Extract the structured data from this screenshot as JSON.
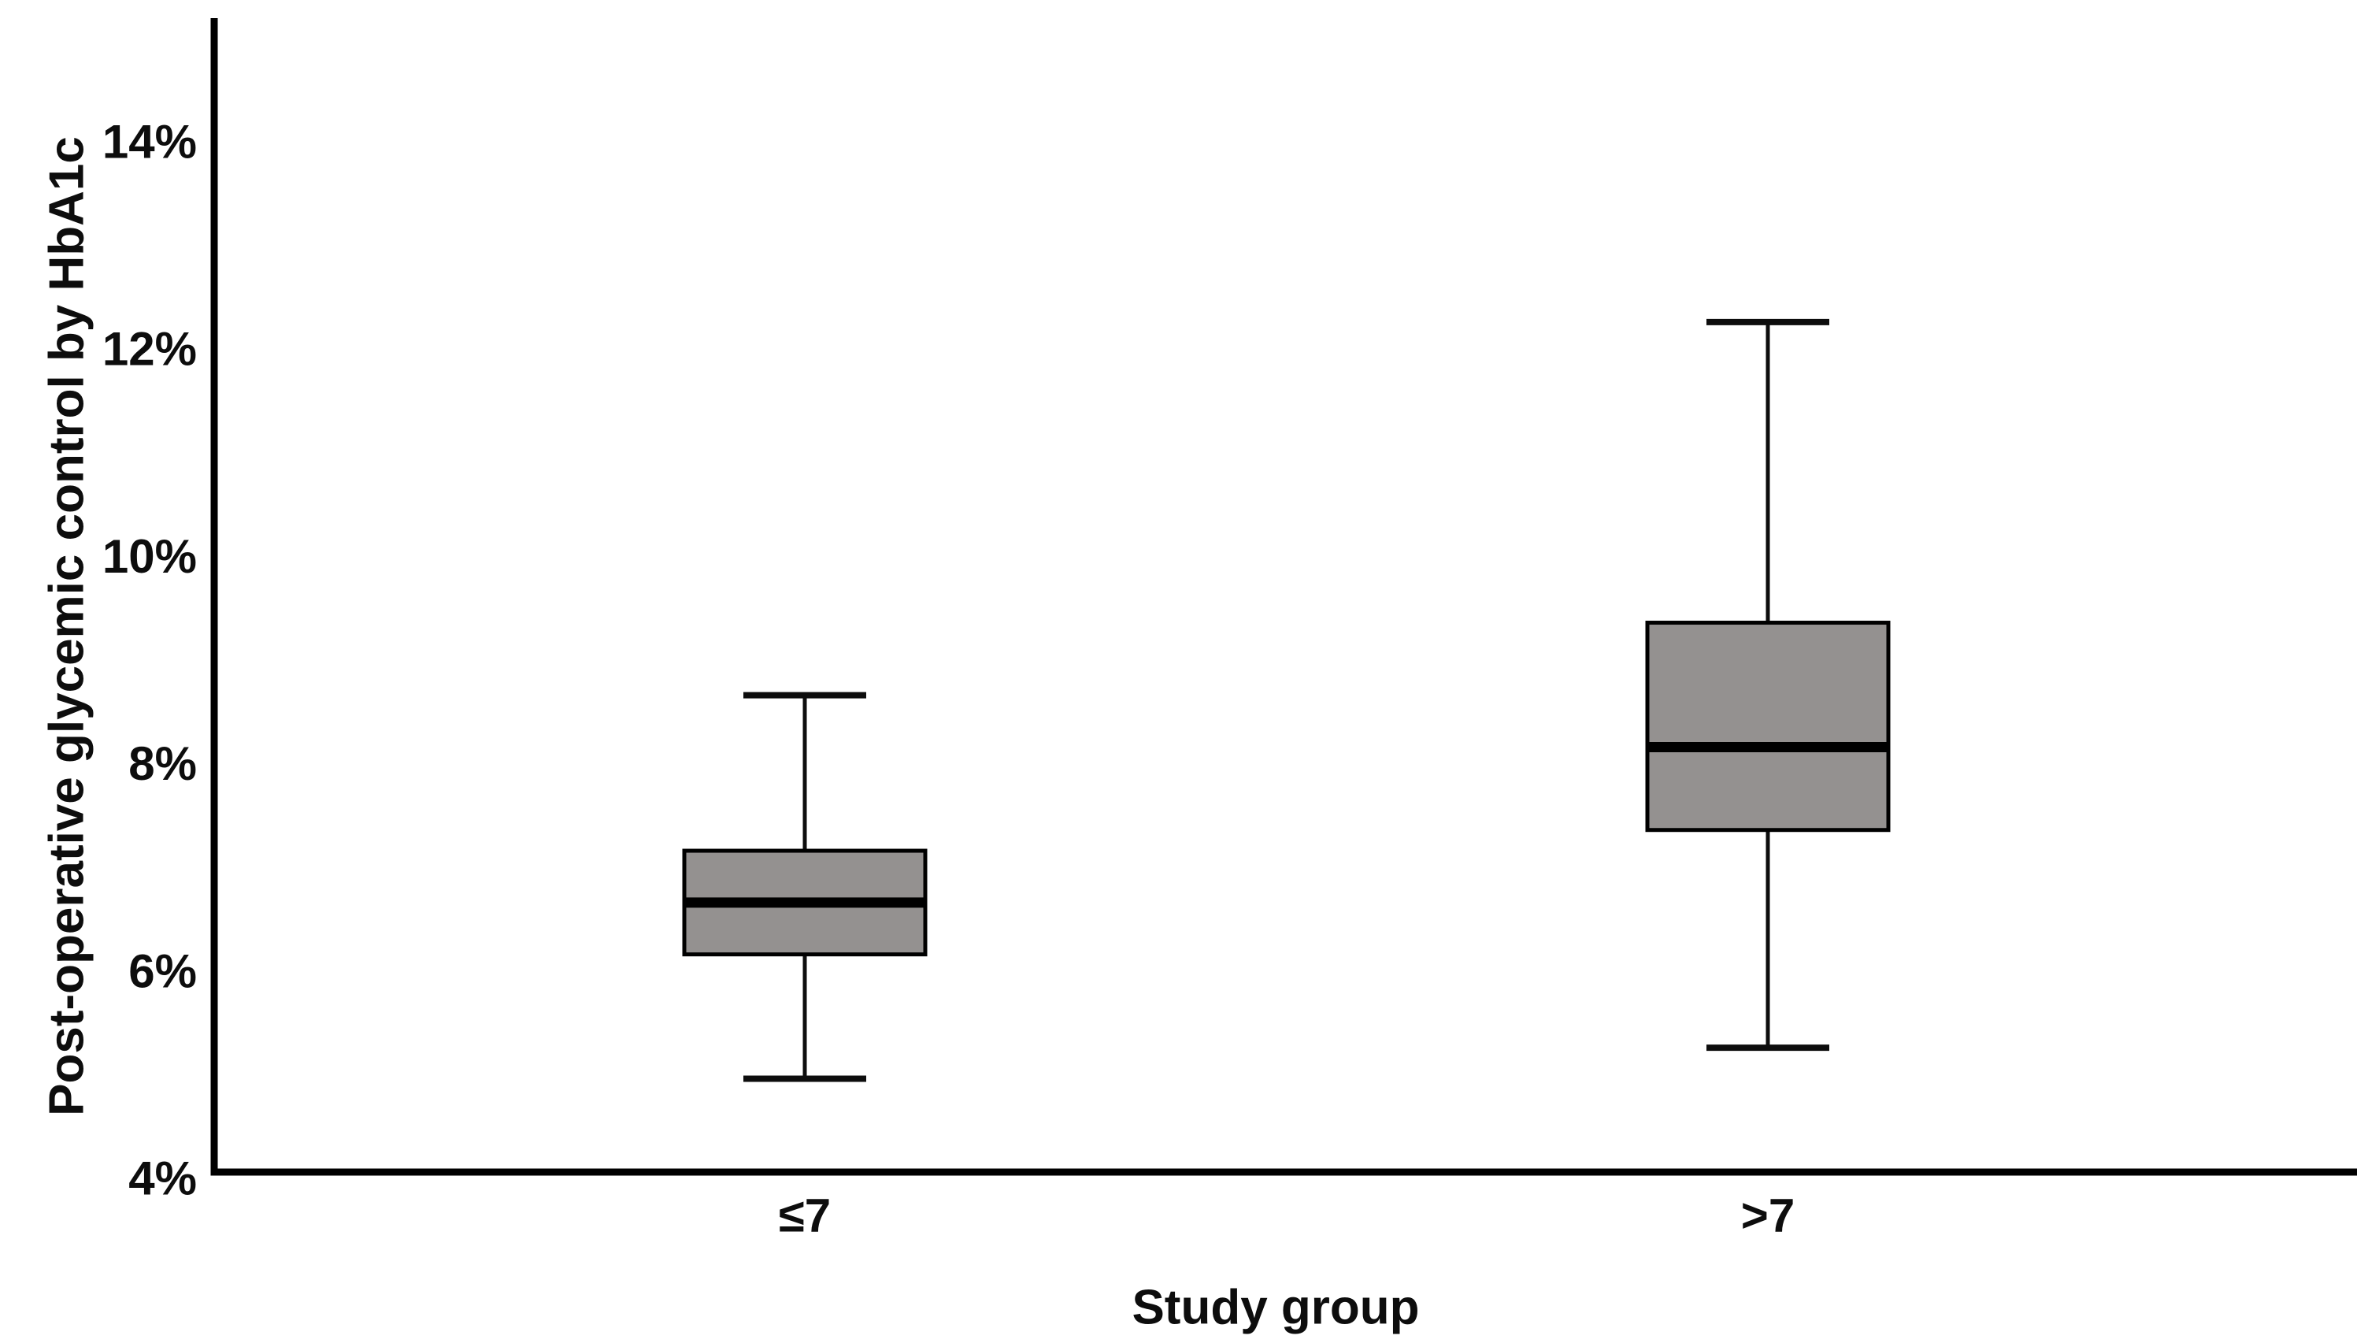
{
  "chart_data": {
    "type": "boxplot",
    "title": "",
    "xlabel": "Study group",
    "ylabel": "Post-operative glycemic control by HbA1c",
    "categories": [
      "≤7",
      ">7"
    ],
    "y_axis": {
      "min": 4,
      "max": 14,
      "tick_values": [
        4,
        6,
        8,
        10,
        12,
        14
      ],
      "tick_labels": [
        "4%",
        "6%",
        "8%",
        "10%",
        "12%",
        "14%"
      ],
      "unit": "%"
    },
    "series": [
      {
        "name": "≤7",
        "whisker_low": 4.9,
        "q1": 6.1,
        "median": 6.6,
        "q3": 7.1,
        "whisker_high": 8.6
      },
      {
        "name": ">7",
        "whisker_low": 5.2,
        "q1": 7.3,
        "median": 8.1,
        "q3": 9.3,
        "whisker_high": 12.2
      }
    ],
    "colors": {
      "box_fill": "#949190",
      "box_border": "#000000",
      "median": "#000000",
      "whisker": "#0d0d0d",
      "axis": "#000000",
      "text": "#0d0d0d",
      "background": "#ffffff"
    },
    "legend": "none",
    "grid": false
  }
}
